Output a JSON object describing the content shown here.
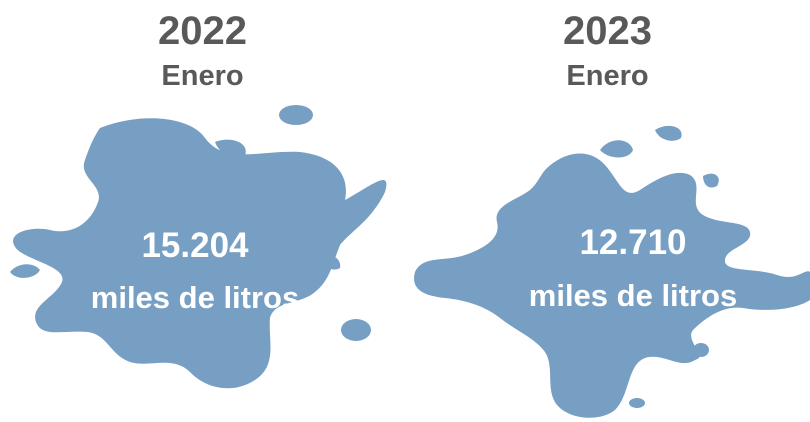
{
  "colors": {
    "splash": "#779fc3",
    "heading": "#595959",
    "value_text": "#ffffff"
  },
  "panels": [
    {
      "year": "2022",
      "month": "Enero",
      "value": "15.204",
      "unit": "miles de litros"
    },
    {
      "year": "2023",
      "month": "Enero",
      "value": "12.710",
      "unit": "miles de litros"
    }
  ]
}
